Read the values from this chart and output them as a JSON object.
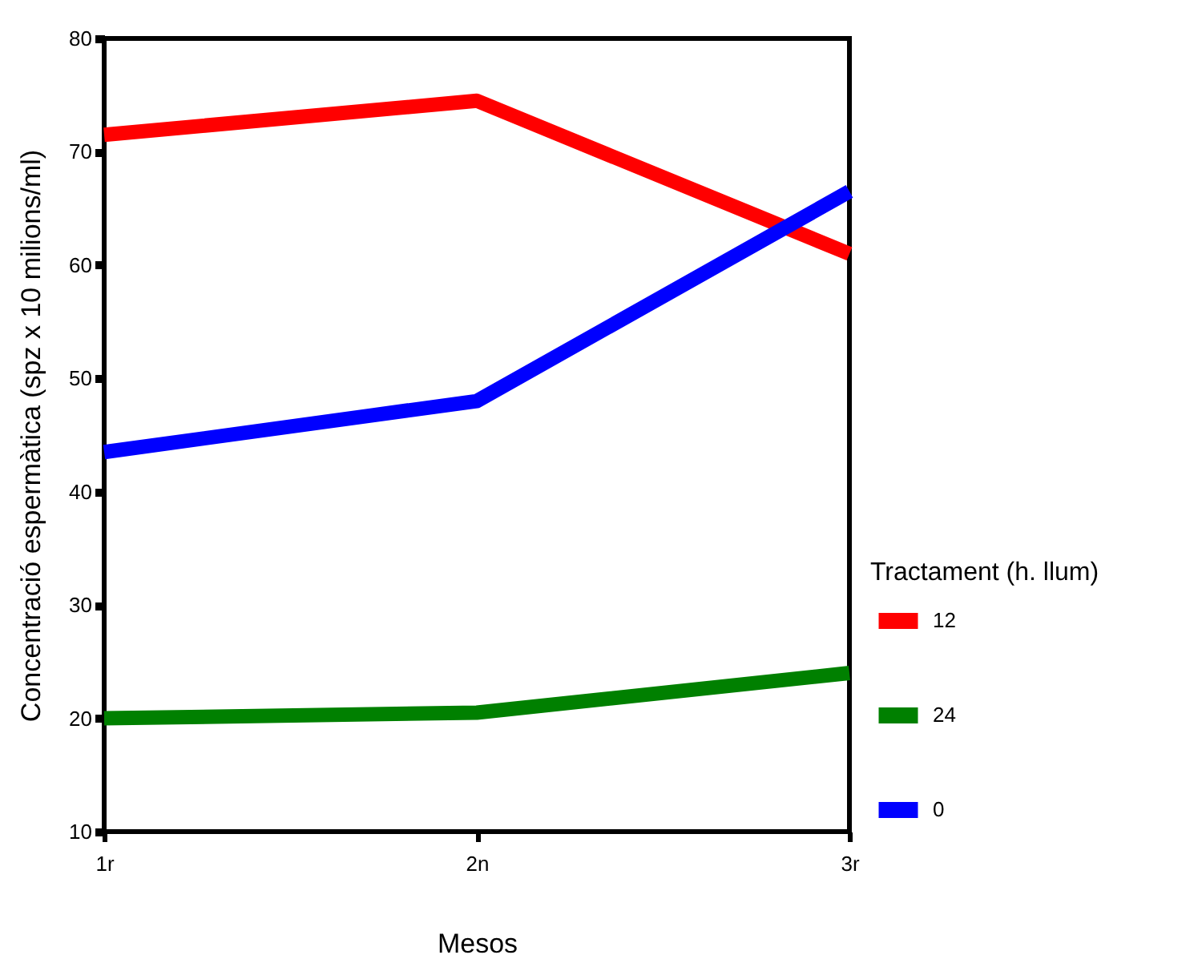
{
  "chart_data": {
    "type": "line",
    "xlabel": "Mesos",
    "ylabel": "Concentració espermàtica  (spz x 10 milions/ml)",
    "legend_title": "Tractament (h. llum)",
    "categories": [
      "1r",
      "2n",
      "3r"
    ],
    "ylim": [
      10,
      80
    ],
    "yticks": [
      10,
      20,
      30,
      40,
      50,
      60,
      70,
      80
    ],
    "grid": false,
    "legend": "right",
    "marker": "none",
    "line_style": "solid",
    "series": [
      {
        "name": "12",
        "color": "#ff0000",
        "values": [
          71.5,
          74.5,
          61
        ]
      },
      {
        "name": "24",
        "color": "#008000",
        "values": [
          20,
          20.5,
          24
        ]
      },
      {
        "name": "0",
        "color": "#0000ff",
        "values": [
          43.5,
          48,
          66.5
        ]
      }
    ]
  }
}
